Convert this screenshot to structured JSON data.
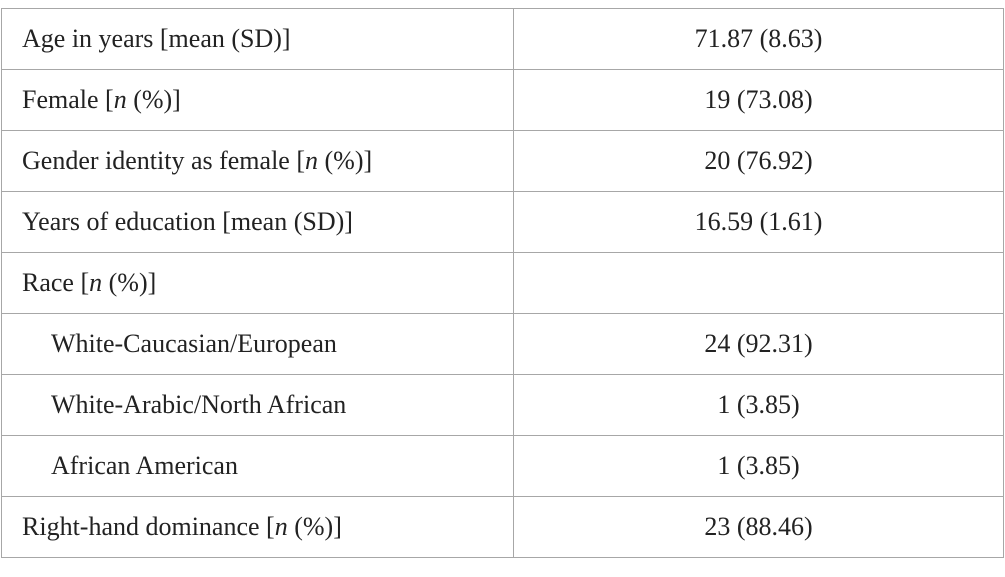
{
  "table": {
    "rows": [
      {
        "pre": "Age in years [mean (SD)]",
        "ital": "",
        "post": "",
        "value": "71.87 (8.63)"
      },
      {
        "pre": "Female [",
        "ital": "n",
        "post": " (%)]",
        "value": "19 (73.08)"
      },
      {
        "pre": "Gender identity as female [",
        "ital": "n",
        "post": " (%)]",
        "value": "20 (76.92)"
      },
      {
        "pre": "Years of education [mean (SD)]",
        "ital": "",
        "post": "",
        "value": "16.59 (1.61)"
      },
      {
        "pre": "Race [",
        "ital": "n",
        "post": " (%)]",
        "value": ""
      },
      {
        "pre": "White-Caucasian/European",
        "ital": "",
        "post": "",
        "value": "24 (92.31)"
      },
      {
        "pre": "White-Arabic/North African",
        "ital": "",
        "post": "",
        "value": "1 (3.85)"
      },
      {
        "pre": "African American",
        "ital": "",
        "post": "",
        "value": "1 (3.85)"
      },
      {
        "pre": "Right-hand dominance [",
        "ital": "n",
        "post": " (%)]",
        "value": "23 (88.46)"
      }
    ]
  }
}
